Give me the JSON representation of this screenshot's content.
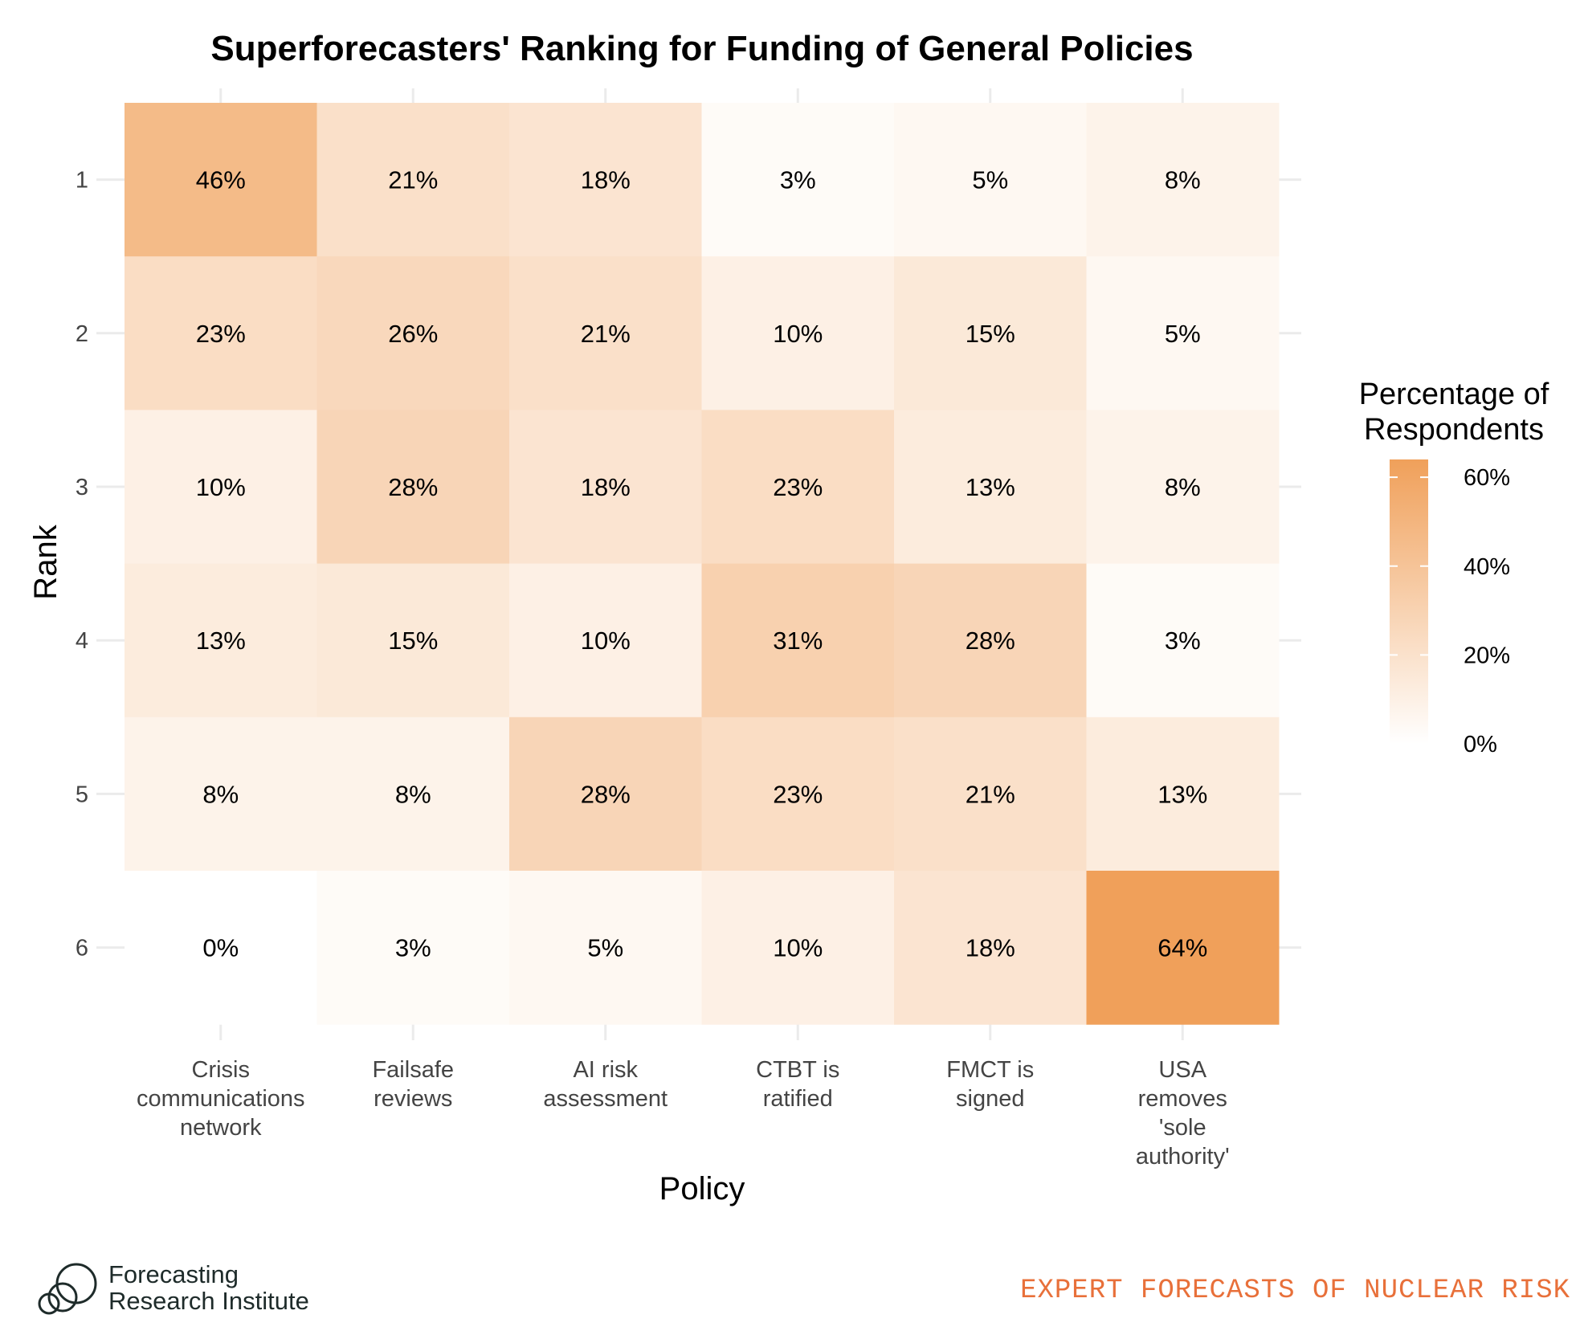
{
  "chart_data": {
    "type": "heatmap",
    "title": "Superforecasters' Ranking for Funding of General Policies",
    "xlabel": "Policy",
    "ylabel": "Rank",
    "x_categories": [
      [
        "Crisis",
        "communications",
        "network"
      ],
      [
        "Failsafe",
        "reviews"
      ],
      [
        "AI risk",
        "assessment"
      ],
      [
        "CTBT is",
        "ratified"
      ],
      [
        "FMCT is",
        "signed"
      ],
      [
        "USA",
        "removes",
        "'sole",
        "authority'"
      ]
    ],
    "y_categories": [
      "1",
      "2",
      "3",
      "4",
      "5",
      "6"
    ],
    "values": [
      [
        46,
        21,
        18,
        3,
        5,
        8
      ],
      [
        23,
        26,
        21,
        10,
        15,
        5
      ],
      [
        10,
        28,
        18,
        23,
        13,
        8
      ],
      [
        13,
        15,
        10,
        31,
        28,
        3
      ],
      [
        8,
        8,
        28,
        23,
        21,
        13
      ],
      [
        0,
        3,
        5,
        10,
        18,
        64
      ]
    ],
    "value_suffix": "%",
    "legend": {
      "title": [
        "Percentage of",
        "Respondents"
      ],
      "ticks": [
        0,
        20,
        40,
        60
      ],
      "tick_labels": [
        "0%",
        "20%",
        "40%",
        "60%"
      ],
      "range": [
        0,
        64
      ],
      "placement": "right"
    },
    "colors": {
      "low": "#ffffff",
      "high": "#f0a05a"
    },
    "grid": true
  },
  "footer": {
    "logo_line1": "Forecasting",
    "logo_line2": "Research Institute",
    "tagline": "EXPERT FORECASTS OF NUCLEAR RISK"
  }
}
